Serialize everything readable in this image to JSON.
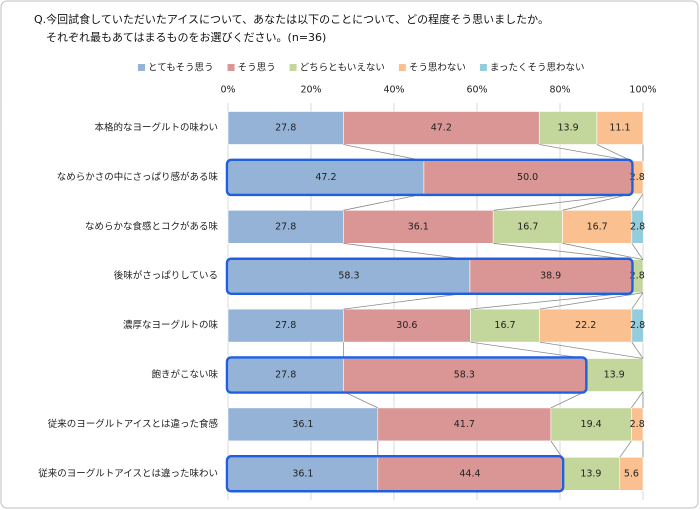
{
  "chart_data": {
    "type": "stacked-bar-horizontal",
    "title": "Q.今回試食していただいたアイスについて、あなたは以下のことについて、どの程度そう思いましたか。",
    "subtitle": "それぞれ最もあてはまるものをお選びください。(n=36)",
    "categories": [
      "本格的なヨーグルトの味わい",
      "なめらかさの中にさっぱり感がある味",
      "なめらかな食感とコクがある味",
      "後味がさっぱりしている",
      "濃厚なヨーグルトの味",
      "飽きがこない味",
      "従来のヨーグルトアイスとは違った食感",
      "従来のヨーグルトアイスとは違った味わい"
    ],
    "series": [
      {
        "name": "とてもそう思う",
        "color": "#95b3d7",
        "values": [
          27.8,
          47.2,
          27.8,
          58.3,
          27.8,
          27.8,
          36.1,
          36.1
        ]
      },
      {
        "name": "そう思う",
        "color": "#d99694",
        "values": [
          47.2,
          50.0,
          36.1,
          38.9,
          30.6,
          58.3,
          41.7,
          44.4
        ],
        "value_labels": [
          "47.2",
          "50.0",
          "36.1",
          "38.9",
          "30.6",
          "58.3",
          "41.7",
          "44.4"
        ]
      },
      {
        "name": "どちらともいえない",
        "color": "#c3d69b",
        "values": [
          13.9,
          null,
          16.7,
          2.8,
          16.7,
          13.9,
          19.4,
          13.9
        ]
      },
      {
        "name": "そう思わない",
        "color": "#fac090",
        "values": [
          11.1,
          2.8,
          16.7,
          null,
          22.2,
          null,
          2.8,
          5.6
        ]
      },
      {
        "name": "まったくそう思わない",
        "color": "#93cddd",
        "values": [
          null,
          null,
          2.8,
          null,
          2.8,
          null,
          null,
          null
        ]
      }
    ],
    "xlim": [
      0,
      100
    ],
    "xticks": [
      {
        "value": 0,
        "label": "0%"
      },
      {
        "value": 20,
        "label": "20%"
      },
      {
        "value": 40,
        "label": "40%"
      },
      {
        "value": 60,
        "label": "60%"
      },
      {
        "value": 80,
        "label": "80%"
      },
      {
        "value": 100,
        "label": "100%"
      }
    ],
    "grid": true,
    "highlight_color": "#1f5fe0",
    "highlighted_categories": [
      "なめらかさの中にさっぱり感がある味",
      "後味がさっぱりしている",
      "飽きがこない味",
      "従来のヨーグルトアイスとは違った味わい"
    ]
  }
}
